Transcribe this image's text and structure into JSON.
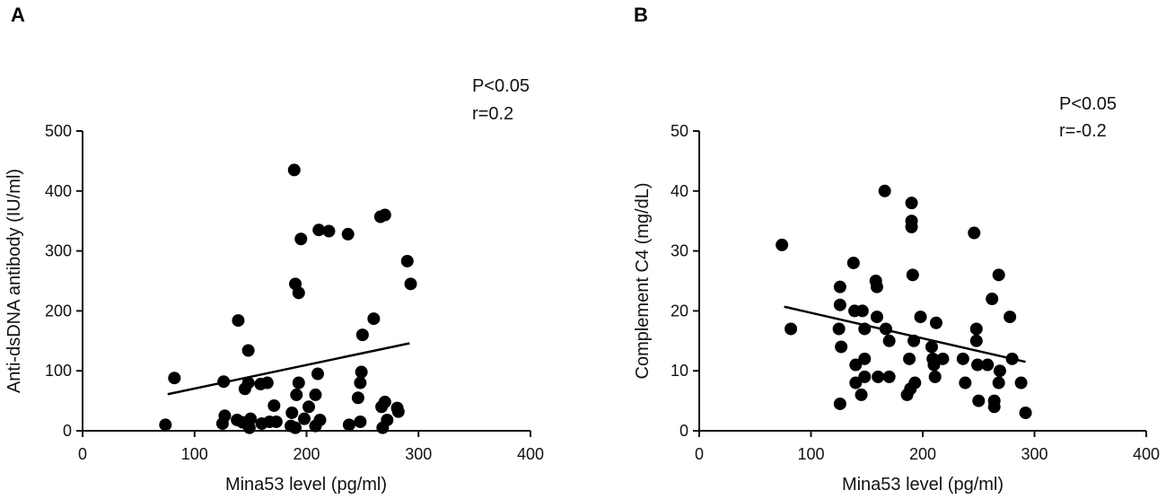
{
  "chart_data": [
    {
      "type": "scatter",
      "panel_label": "A",
      "xlabel": "Mina53 level (pg/ml)",
      "ylabel": "Anti-dsDNA antibody (IU/ml)",
      "xlim": [
        0,
        400
      ],
      "ylim": [
        0,
        500
      ],
      "xticks": [
        0,
        100,
        200,
        300,
        400
      ],
      "yticks": [
        0,
        100,
        200,
        300,
        400,
        500
      ],
      "annotations": [
        "P<0.05",
        "r=0.2"
      ],
      "regression": {
        "x": [
          76,
          292
        ],
        "y": [
          61,
          146
        ]
      },
      "points": [
        {
          "x": 74,
          "y": 10
        },
        {
          "x": 82,
          "y": 88
        },
        {
          "x": 126,
          "y": 82
        },
        {
          "x": 125,
          "y": 12
        },
        {
          "x": 127,
          "y": 25
        },
        {
          "x": 138,
          "y": 18
        },
        {
          "x": 139,
          "y": 184
        },
        {
          "x": 143,
          "y": 14
        },
        {
          "x": 145,
          "y": 70
        },
        {
          "x": 148,
          "y": 134
        },
        {
          "x": 148,
          "y": 80
        },
        {
          "x": 150,
          "y": 20
        },
        {
          "x": 149,
          "y": 5
        },
        {
          "x": 159,
          "y": 78
        },
        {
          "x": 160,
          "y": 12
        },
        {
          "x": 165,
          "y": 80
        },
        {
          "x": 167,
          "y": 15
        },
        {
          "x": 171,
          "y": 42
        },
        {
          "x": 173,
          "y": 15
        },
        {
          "x": 186,
          "y": 8
        },
        {
          "x": 187,
          "y": 30
        },
        {
          "x": 189,
          "y": 435
        },
        {
          "x": 190,
          "y": 245
        },
        {
          "x": 191,
          "y": 60
        },
        {
          "x": 193,
          "y": 230
        },
        {
          "x": 193,
          "y": 80
        },
        {
          "x": 195,
          "y": 320
        },
        {
          "x": 190,
          "y": 5
        },
        {
          "x": 198,
          "y": 20
        },
        {
          "x": 202,
          "y": 40
        },
        {
          "x": 208,
          "y": 60
        },
        {
          "x": 210,
          "y": 95
        },
        {
          "x": 211,
          "y": 335
        },
        {
          "x": 212,
          "y": 18
        },
        {
          "x": 208,
          "y": 8
        },
        {
          "x": 220,
          "y": 333
        },
        {
          "x": 237,
          "y": 328
        },
        {
          "x": 238,
          "y": 10
        },
        {
          "x": 246,
          "y": 55
        },
        {
          "x": 248,
          "y": 80
        },
        {
          "x": 249,
          "y": 98
        },
        {
          "x": 248,
          "y": 15
        },
        {
          "x": 250,
          "y": 160
        },
        {
          "x": 260,
          "y": 187
        },
        {
          "x": 266,
          "y": 357
        },
        {
          "x": 270,
          "y": 360
        },
        {
          "x": 267,
          "y": 40
        },
        {
          "x": 268,
          "y": 5
        },
        {
          "x": 270,
          "y": 48
        },
        {
          "x": 272,
          "y": 18
        },
        {
          "x": 281,
          "y": 38
        },
        {
          "x": 282,
          "y": 32
        },
        {
          "x": 290,
          "y": 283
        },
        {
          "x": 293,
          "y": 245
        }
      ]
    },
    {
      "type": "scatter",
      "panel_label": "B",
      "xlabel": "Mina53 level (pg/ml)",
      "ylabel": "Complement C4 (mg/dL)",
      "xlim": [
        0,
        400
      ],
      "ylim": [
        0,
        50
      ],
      "xticks": [
        0,
        100,
        200,
        300,
        400
      ],
      "yticks": [
        0,
        10,
        20,
        30,
        40,
        50
      ],
      "annotations": [
        "P<0.05",
        "r=-0.2"
      ],
      "regression": {
        "x": [
          76,
          292
        ],
        "y": [
          20.7,
          11.5
        ]
      },
      "points": [
        {
          "x": 74,
          "y": 31
        },
        {
          "x": 82,
          "y": 17
        },
        {
          "x": 125,
          "y": 17
        },
        {
          "x": 126,
          "y": 24
        },
        {
          "x": 126,
          "y": 21
        },
        {
          "x": 127,
          "y": 14
        },
        {
          "x": 126,
          "y": 4.5
        },
        {
          "x": 138,
          "y": 28
        },
        {
          "x": 139,
          "y": 20
        },
        {
          "x": 140,
          "y": 11
        },
        {
          "x": 140,
          "y": 8
        },
        {
          "x": 145,
          "y": 6
        },
        {
          "x": 146,
          "y": 20
        },
        {
          "x": 148,
          "y": 17
        },
        {
          "x": 148,
          "y": 12
        },
        {
          "x": 148,
          "y": 9
        },
        {
          "x": 158,
          "y": 25
        },
        {
          "x": 159,
          "y": 24
        },
        {
          "x": 159,
          "y": 19
        },
        {
          "x": 160,
          "y": 9
        },
        {
          "x": 166,
          "y": 40
        },
        {
          "x": 167,
          "y": 17
        },
        {
          "x": 170,
          "y": 15
        },
        {
          "x": 170,
          "y": 9
        },
        {
          "x": 186,
          "y": 6
        },
        {
          "x": 188,
          "y": 12
        },
        {
          "x": 189,
          "y": 7
        },
        {
          "x": 190,
          "y": 38
        },
        {
          "x": 190,
          "y": 35
        },
        {
          "x": 190,
          "y": 34
        },
        {
          "x": 191,
          "y": 26
        },
        {
          "x": 192,
          "y": 15
        },
        {
          "x": 193,
          "y": 8
        },
        {
          "x": 198,
          "y": 19
        },
        {
          "x": 208,
          "y": 14
        },
        {
          "x": 209,
          "y": 12
        },
        {
          "x": 210,
          "y": 11
        },
        {
          "x": 211,
          "y": 9
        },
        {
          "x": 212,
          "y": 18
        },
        {
          "x": 218,
          "y": 12
        },
        {
          "x": 236,
          "y": 12
        },
        {
          "x": 238,
          "y": 8
        },
        {
          "x": 246,
          "y": 33
        },
        {
          "x": 248,
          "y": 17
        },
        {
          "x": 248,
          "y": 15
        },
        {
          "x": 249,
          "y": 11
        },
        {
          "x": 250,
          "y": 5
        },
        {
          "x": 258,
          "y": 11
        },
        {
          "x": 262,
          "y": 22
        },
        {
          "x": 264,
          "y": 5
        },
        {
          "x": 264,
          "y": 4
        },
        {
          "x": 268,
          "y": 26
        },
        {
          "x": 268,
          "y": 8
        },
        {
          "x": 269,
          "y": 10
        },
        {
          "x": 278,
          "y": 19
        },
        {
          "x": 280,
          "y": 12
        },
        {
          "x": 288,
          "y": 8
        },
        {
          "x": 292,
          "y": 3
        }
      ]
    }
  ]
}
